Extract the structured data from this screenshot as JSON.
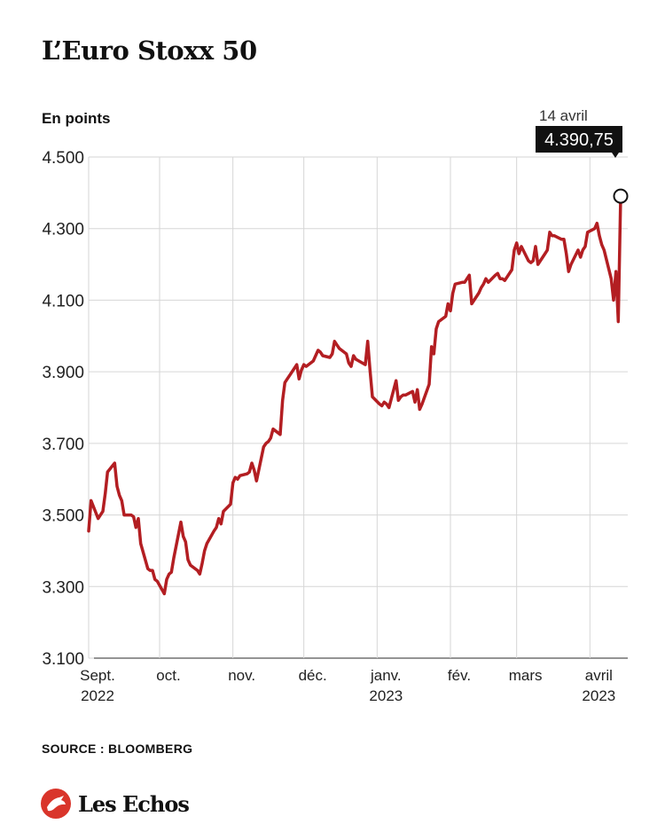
{
  "header": {
    "title": "L’Euro Stoxx 50",
    "unit_label": "En points"
  },
  "footer": {
    "source": "SOURCE : BLOOMBERG",
    "logo_text": "Les Echos"
  },
  "colors": {
    "line": "#b31e22",
    "grid": "#d6d6d6",
    "axis": "#555555",
    "callout_bg": "#111111",
    "brand": "#d9352b"
  },
  "chart_data": {
    "type": "line",
    "title": "L’Euro Stoxx 50",
    "ylabel": "En points",
    "xlabel": "",
    "ylim": [
      3100,
      4500
    ],
    "yticks": [
      3100,
      3300,
      3500,
      3700,
      3900,
      4100,
      4300,
      4500
    ],
    "ytick_labels": [
      "3.100",
      "3.300",
      "3.500",
      "3.700",
      "3.900",
      "4.100",
      "4.300",
      "4.500"
    ],
    "xlim": [
      "2022-09-01",
      "2023-04-17"
    ],
    "xticks": [
      {
        "date": "2022-09-01",
        "label": "Sept.",
        "sublabel": "2022"
      },
      {
        "date": "2022-10-01",
        "label": "oct.",
        "sublabel": ""
      },
      {
        "date": "2022-11-01",
        "label": "nov.",
        "sublabel": ""
      },
      {
        "date": "2022-12-01",
        "label": "déc.",
        "sublabel": ""
      },
      {
        "date": "2023-01-01",
        "label": "janv.",
        "sublabel": "2023"
      },
      {
        "date": "2023-02-01",
        "label": "fév.",
        "sublabel": ""
      },
      {
        "date": "2023-03-01",
        "label": "mars",
        "sublabel": ""
      },
      {
        "date": "2023-04-01",
        "label": "avril",
        "sublabel": "2023"
      }
    ],
    "grid": true,
    "annotation": {
      "date": "2023-04-14",
      "label": "14 avril",
      "value": 4390.75,
      "value_label": "4.390,75"
    },
    "series": [
      {
        "values": [
          [
            "2022-09-01",
            3455
          ],
          [
            "2022-09-02",
            3540
          ],
          [
            "2022-09-05",
            3490
          ],
          [
            "2022-09-06",
            3500
          ],
          [
            "2022-09-07",
            3510
          ],
          [
            "2022-09-08",
            3560
          ],
          [
            "2022-09-09",
            3620
          ],
          [
            "2022-09-12",
            3645
          ],
          [
            "2022-09-13",
            3580
          ],
          [
            "2022-09-14",
            3555
          ],
          [
            "2022-09-15",
            3540
          ],
          [
            "2022-09-16",
            3500
          ],
          [
            "2022-09-19",
            3500
          ],
          [
            "2022-09-20",
            3495
          ],
          [
            "2022-09-21",
            3465
          ],
          [
            "2022-09-22",
            3490
          ],
          [
            "2022-09-23",
            3420
          ],
          [
            "2022-09-26",
            3350
          ],
          [
            "2022-09-27",
            3345
          ],
          [
            "2022-09-28",
            3345
          ],
          [
            "2022-09-29",
            3320
          ],
          [
            "2022-09-30",
            3315
          ],
          [
            "2022-10-03",
            3280
          ],
          [
            "2022-10-04",
            3320
          ],
          [
            "2022-10-05",
            3335
          ],
          [
            "2022-10-06",
            3340
          ],
          [
            "2022-10-07",
            3380
          ],
          [
            "2022-10-10",
            3480
          ],
          [
            "2022-10-11",
            3440
          ],
          [
            "2022-10-12",
            3425
          ],
          [
            "2022-10-13",
            3375
          ],
          [
            "2022-10-14",
            3360
          ],
          [
            "2022-10-17",
            3345
          ],
          [
            "2022-10-18",
            3335
          ],
          [
            "2022-10-19",
            3365
          ],
          [
            "2022-10-20",
            3400
          ],
          [
            "2022-10-21",
            3420
          ],
          [
            "2022-10-24",
            3455
          ],
          [
            "2022-10-25",
            3465
          ],
          [
            "2022-10-26",
            3490
          ],
          [
            "2022-10-27",
            3475
          ],
          [
            "2022-10-28",
            3510
          ],
          [
            "2022-10-31",
            3530
          ],
          [
            "2022-11-01",
            3590
          ],
          [
            "2022-11-02",
            3605
          ],
          [
            "2022-11-03",
            3600
          ],
          [
            "2022-11-04",
            3610
          ],
          [
            "2022-11-07",
            3615
          ],
          [
            "2022-11-08",
            3620
          ],
          [
            "2022-11-09",
            3645
          ],
          [
            "2022-11-10",
            3625
          ],
          [
            "2022-11-11",
            3595
          ],
          [
            "2022-11-14",
            3690
          ],
          [
            "2022-11-15",
            3700
          ],
          [
            "2022-11-16",
            3705
          ],
          [
            "2022-11-17",
            3715
          ],
          [
            "2022-11-18",
            3740
          ],
          [
            "2022-11-21",
            3725
          ],
          [
            "2022-11-22",
            3820
          ],
          [
            "2022-11-23",
            3870
          ],
          [
            "2022-11-24",
            3880
          ],
          [
            "2022-11-25",
            3890
          ],
          [
            "2022-11-28",
            3920
          ],
          [
            "2022-11-29",
            3880
          ],
          [
            "2022-11-30",
            3905
          ],
          [
            "2022-12-01",
            3920
          ],
          [
            "2022-12-02",
            3915
          ],
          [
            "2022-12-05",
            3930
          ],
          [
            "2022-12-06",
            3945
          ],
          [
            "2022-12-07",
            3960
          ],
          [
            "2022-12-08",
            3955
          ],
          [
            "2022-12-09",
            3945
          ],
          [
            "2022-12-12",
            3940
          ],
          [
            "2022-12-13",
            3950
          ],
          [
            "2022-12-14",
            3985
          ],
          [
            "2022-12-15",
            3975
          ],
          [
            "2022-12-16",
            3965
          ],
          [
            "2022-12-19",
            3950
          ],
          [
            "2022-12-20",
            3925
          ],
          [
            "2022-12-21",
            3915
          ],
          [
            "2022-12-22",
            3945
          ],
          [
            "2022-12-23",
            3935
          ],
          [
            "2022-12-27",
            3920
          ],
          [
            "2022-12-28",
            3985
          ],
          [
            "2022-12-29",
            3905
          ],
          [
            "2022-12-30",
            3830
          ],
          [
            "2023-01-02",
            3810
          ],
          [
            "2023-01-03",
            3805
          ],
          [
            "2023-01-04",
            3815
          ],
          [
            "2023-01-05",
            3810
          ],
          [
            "2023-01-06",
            3800
          ],
          [
            "2023-01-09",
            3875
          ],
          [
            "2023-01-10",
            3820
          ],
          [
            "2023-01-11",
            3830
          ],
          [
            "2023-01-12",
            3835
          ],
          [
            "2023-01-13",
            3835
          ],
          [
            "2023-01-16",
            3845
          ],
          [
            "2023-01-17",
            3815
          ],
          [
            "2023-01-18",
            3850
          ],
          [
            "2023-01-19",
            3795
          ],
          [
            "2023-01-20",
            3810
          ],
          [
            "2023-01-23",
            3865
          ],
          [
            "2023-01-24",
            3970
          ],
          [
            "2023-01-25",
            3950
          ],
          [
            "2023-01-26",
            4020
          ],
          [
            "2023-01-27",
            4040
          ],
          [
            "2023-01-30",
            4055
          ],
          [
            "2023-01-31",
            4090
          ],
          [
            "2023-02-01",
            4070
          ],
          [
            "2023-02-02",
            4120
          ],
          [
            "2023-02-03",
            4145
          ],
          [
            "2023-02-06",
            4150
          ],
          [
            "2023-02-07",
            4150
          ],
          [
            "2023-02-08",
            4160
          ],
          [
            "2023-02-09",
            4170
          ],
          [
            "2023-02-10",
            4090
          ],
          [
            "2023-02-13",
            4120
          ],
          [
            "2023-02-14",
            4135
          ],
          [
            "2023-02-15",
            4145
          ],
          [
            "2023-02-16",
            4160
          ],
          [
            "2023-02-17",
            4150
          ],
          [
            "2023-02-20",
            4170
          ],
          [
            "2023-02-21",
            4175
          ],
          [
            "2023-02-22",
            4160
          ],
          [
            "2023-02-23",
            4160
          ],
          [
            "2023-02-24",
            4155
          ],
          [
            "2023-02-27",
            4185
          ],
          [
            "2023-02-28",
            4240
          ],
          [
            "2023-03-01",
            4260
          ],
          [
            "2023-03-02",
            4230
          ],
          [
            "2023-03-03",
            4250
          ],
          [
            "2023-03-06",
            4210
          ],
          [
            "2023-03-07",
            4205
          ],
          [
            "2023-03-08",
            4210
          ],
          [
            "2023-03-09",
            4250
          ],
          [
            "2023-03-10",
            4200
          ],
          [
            "2023-03-13",
            4230
          ],
          [
            "2023-03-14",
            4240
          ],
          [
            "2023-03-15",
            4290
          ],
          [
            "2023-03-16",
            4280
          ],
          [
            "2023-03-17",
            4280
          ],
          [
            "2023-03-20",
            4270
          ],
          [
            "2023-03-21",
            4270
          ],
          [
            "2023-03-22",
            4230
          ],
          [
            "2023-03-23",
            4180
          ],
          [
            "2023-03-24",
            4200
          ],
          [
            "2023-03-27",
            4240
          ],
          [
            "2023-03-28",
            4220
          ],
          [
            "2023-03-29",
            4240
          ],
          [
            "2023-03-30",
            4250
          ],
          [
            "2023-03-31",
            4290
          ],
          [
            "2023-04-03",
            4300
          ],
          [
            "2023-04-04",
            4315
          ],
          [
            "2023-04-05",
            4280
          ],
          [
            "2023-04-06",
            4255
          ],
          [
            "2023-04-07",
            4240
          ],
          [
            "2023-04-10",
            4160
          ],
          [
            "2023-04-11",
            4100
          ],
          [
            "2023-04-12",
            4180
          ],
          [
            "2023-04-13",
            4040
          ],
          [
            "2023-04-14",
            4390.75
          ]
        ]
      }
    ]
  }
}
